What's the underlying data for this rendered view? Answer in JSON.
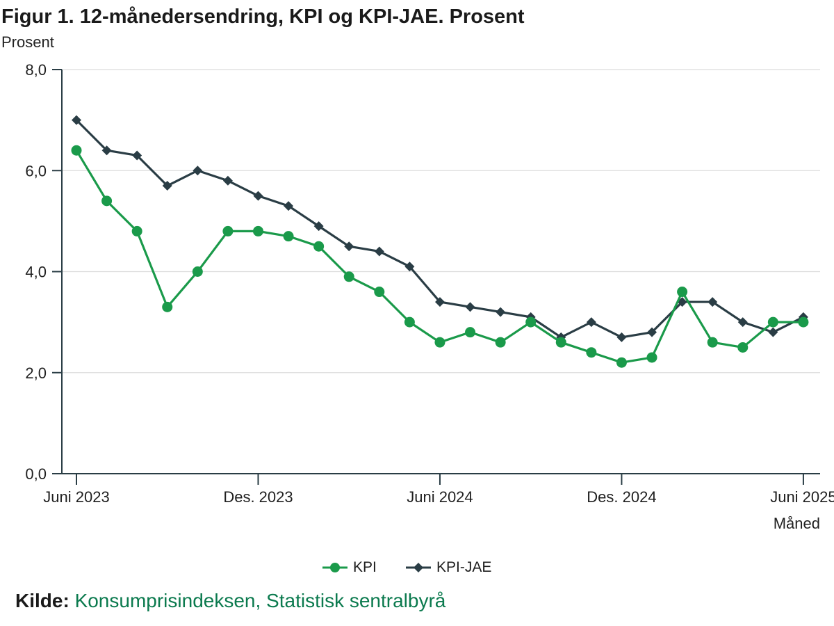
{
  "title": "Figur 1. 12-månedersendring, KPI og KPI-JAE. Prosent",
  "source": {
    "label": "Kilde:",
    "text": "Konsumprisindeksen, Statistisk sentralbyrå"
  },
  "colors": {
    "kpi": "#1a9a4a",
    "kpi_jae": "#2a3d45",
    "grid": "#dcdcdc",
    "axis": "#2a3d45"
  },
  "chart_data": {
    "type": "line",
    "title": "Figur 1. 12-månedersendring, KPI og KPI-JAE. Prosent",
    "ylabel": "Prosent",
    "xlabel": "Måned",
    "ylim": [
      0,
      8
    ],
    "yticks": [
      "0,0",
      "2,0",
      "4,0",
      "6,0",
      "8,0"
    ],
    "ytick_values": [
      0,
      2,
      4,
      6,
      8
    ],
    "xtick_labels": [
      "Juni 2023",
      "Des. 2023",
      "Juni 2024",
      "Des. 2024",
      "Juni 2025"
    ],
    "xtick_indices": [
      0,
      6,
      12,
      18,
      24
    ],
    "categories": [
      "2023-06",
      "2023-07",
      "2023-08",
      "2023-09",
      "2023-10",
      "2023-11",
      "2023-12",
      "2024-01",
      "2024-02",
      "2024-03",
      "2024-04",
      "2024-05",
      "2024-06",
      "2024-07",
      "2024-08",
      "2024-09",
      "2024-10",
      "2024-11",
      "2024-12",
      "2025-01",
      "2025-02",
      "2025-03",
      "2025-04",
      "2025-05",
      "2025-06"
    ],
    "grid": true,
    "legend_position": "bottom-center",
    "series": [
      {
        "name": "KPI",
        "marker": "circle",
        "values": [
          6.4,
          5.4,
          4.8,
          3.3,
          4.0,
          4.8,
          4.8,
          4.7,
          4.5,
          3.9,
          3.6,
          3.0,
          2.6,
          2.8,
          2.6,
          3.0,
          2.6,
          2.4,
          2.2,
          2.3,
          3.6,
          2.6,
          2.5,
          3.0,
          3.0
        ]
      },
      {
        "name": "KPI-JAE",
        "marker": "diamond",
        "values": [
          7.0,
          6.4,
          6.3,
          5.7,
          6.0,
          5.8,
          5.5,
          5.3,
          4.9,
          4.5,
          4.4,
          4.1,
          3.4,
          3.3,
          3.2,
          3.1,
          2.7,
          3.0,
          2.7,
          2.8,
          3.4,
          3.4,
          3.0,
          2.8,
          3.1
        ]
      }
    ]
  }
}
